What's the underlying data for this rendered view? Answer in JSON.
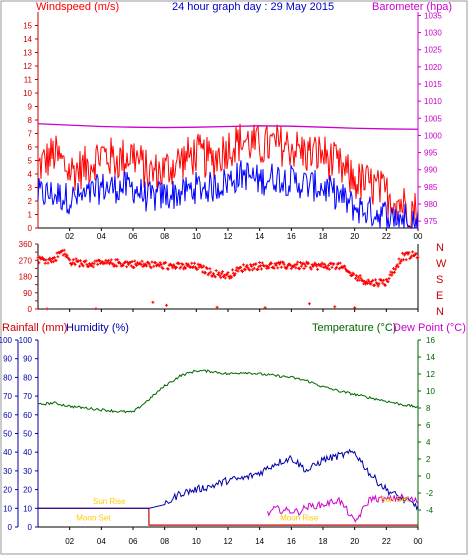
{
  "header": {
    "left_title": "Windspeed (m/s)",
    "center_title": "24 hour graph day : 29 May 2015",
    "right_title": "Barometer (hpa)"
  },
  "colors": {
    "wind": "#ff0000",
    "gust": "#ff0000",
    "avg_wind": "#0000ff",
    "barometer": "#cc00cc",
    "direction": "#ff0000",
    "rain": "#cc0000",
    "humidity": "#0000aa",
    "temperature": "#006600",
    "dewpoint": "#cc00cc",
    "sun_moon": "#ffcc00"
  },
  "chart_data": [
    {
      "type": "line",
      "name": "wind",
      "x_ticks": [
        "02",
        "04",
        "06",
        "08",
        "10",
        "12",
        "14",
        "16",
        "18",
        "20",
        "22",
        "00"
      ],
      "y_left_ticks": [
        0,
        1,
        2,
        3,
        4,
        5,
        6,
        7,
        8,
        9,
        10,
        11,
        12,
        13,
        14,
        15
      ],
      "y_right_ticks": [
        975,
        980,
        985,
        990,
        995,
        1000,
        1005,
        1010,
        1015,
        1020,
        1025,
        1030,
        1035
      ],
      "ylim": [
        0,
        16
      ],
      "ylim_right": [
        973,
        1036
      ],
      "barometer": [
        [
          0,
          1003.4
        ],
        [
          2,
          1003.0
        ],
        [
          4,
          1002.6
        ],
        [
          6,
          1002.4
        ],
        [
          8,
          1002.3
        ],
        [
          10,
          1002.4
        ],
        [
          12,
          1002.6
        ],
        [
          14,
          1002.8
        ],
        [
          16,
          1002.7
        ],
        [
          18,
          1002.4
        ],
        [
          20,
          1002.1
        ],
        [
          22,
          1001.9
        ],
        [
          24,
          1001.8
        ]
      ],
      "gust_profile": [
        [
          0,
          4.5
        ],
        [
          1,
          5.5
        ],
        [
          2,
          4.2
        ],
        [
          3,
          4.5
        ],
        [
          4,
          5.5
        ],
        [
          5,
          5.0
        ],
        [
          6,
          5.5
        ],
        [
          7,
          4.0
        ],
        [
          8,
          4.3
        ],
        [
          9,
          5.0
        ],
        [
          10,
          5.5
        ],
        [
          11,
          5.0
        ],
        [
          12,
          6.0
        ],
        [
          13,
          6.5
        ],
        [
          14,
          6.0
        ],
        [
          15,
          6.2
        ],
        [
          16,
          6.0
        ],
        [
          17,
          5.5
        ],
        [
          18,
          5.5
        ],
        [
          19,
          4.5
        ],
        [
          20,
          3.5
        ],
        [
          21,
          3.2
        ],
        [
          22,
          2.5
        ],
        [
          23,
          1.8
        ],
        [
          24,
          1.2
        ]
      ],
      "avg_profile": [
        [
          0,
          2.5
        ],
        [
          1,
          2.5
        ],
        [
          2,
          2.2
        ],
        [
          3,
          2.3
        ],
        [
          4,
          3.0
        ],
        [
          5,
          3.0
        ],
        [
          6,
          3.0
        ],
        [
          7,
          2.2
        ],
        [
          8,
          2.4
        ],
        [
          9,
          2.6
        ],
        [
          10,
          3.0
        ],
        [
          11,
          3.0
        ],
        [
          12,
          3.5
        ],
        [
          13,
          4.0
        ],
        [
          14,
          3.5
        ],
        [
          15,
          3.8
        ],
        [
          16,
          3.5
        ],
        [
          17,
          3.2
        ],
        [
          18,
          3.0
        ],
        [
          19,
          2.4
        ],
        [
          20,
          1.5
        ],
        [
          21,
          1.2
        ],
        [
          22,
          1.0
        ],
        [
          23,
          0.8
        ],
        [
          24,
          0.5
        ]
      ]
    },
    {
      "type": "scatter",
      "name": "wind_direction",
      "y_ticks": [
        0,
        45,
        90,
        135,
        180,
        225,
        270,
        315,
        360
      ],
      "y_tick_labels": [
        "0",
        "",
        "90",
        "",
        "180",
        "",
        "270",
        "",
        "360"
      ],
      "compass_labels": [
        "N",
        "W",
        "S",
        "E",
        "N"
      ],
      "ylim": [
        0,
        360
      ],
      "profile": [
        [
          0,
          275
        ],
        [
          1,
          270
        ],
        [
          1.5,
          330
        ],
        [
          2,
          265
        ],
        [
          3,
          250
        ],
        [
          4,
          250
        ],
        [
          5,
          255
        ],
        [
          6,
          250
        ],
        [
          7,
          245
        ],
        [
          8,
          240
        ],
        [
          9,
          235
        ],
        [
          10,
          235
        ],
        [
          11,
          200
        ],
        [
          12,
          185
        ],
        [
          13,
          230
        ],
        [
          14,
          240
        ],
        [
          15,
          240
        ],
        [
          16,
          240
        ],
        [
          17,
          240
        ],
        [
          18,
          238
        ],
        [
          19,
          240
        ],
        [
          20,
          180
        ],
        [
          21,
          145
        ],
        [
          22,
          150
        ],
        [
          23,
          290
        ],
        [
          24,
          300
        ]
      ]
    },
    {
      "type": "line",
      "name": "rain_humidity_temperature",
      "left_label_rain": "Rainfall (mm)",
      "left_label_humidity": "Humidity (%)",
      "right_label_temp": "Temperature (°C)",
      "right_label_dew": "Dew Point (°C)",
      "y_left_ticks": [
        0,
        10,
        20,
        30,
        40,
        50,
        60,
        70,
        80,
        90,
        100
      ],
      "y_right_ticks": [
        -4,
        -2,
        0,
        2,
        4,
        6,
        8,
        10,
        12,
        14,
        16
      ],
      "ylim": [
        0,
        100
      ],
      "ylim_right": [
        -6,
        16
      ],
      "temperature": [
        [
          0,
          8.4
        ],
        [
          1,
          8.6
        ],
        [
          2,
          8.2
        ],
        [
          3,
          8.0
        ],
        [
          4,
          7.8
        ],
        [
          5,
          7.6
        ],
        [
          6,
          7.5
        ],
        [
          7,
          9.0
        ],
        [
          8,
          10.6
        ],
        [
          9,
          11.8
        ],
        [
          10,
          12.4
        ],
        [
          11,
          12.3
        ],
        [
          12,
          12.0
        ],
        [
          13,
          12.2
        ],
        [
          14,
          12.0
        ],
        [
          15,
          11.8
        ],
        [
          16,
          11.6
        ],
        [
          17,
          11.2
        ],
        [
          18,
          10.5
        ],
        [
          19,
          10.0
        ],
        [
          20,
          9.6
        ],
        [
          21,
          9.2
        ],
        [
          22,
          8.8
        ],
        [
          23,
          8.4
        ],
        [
          24,
          8.1
        ]
      ],
      "humidity": [
        [
          0,
          10
        ],
        [
          6,
          10
        ],
        [
          7,
          10
        ],
        [
          8,
          12
        ],
        [
          9,
          18
        ],
        [
          10,
          20
        ],
        [
          11,
          22
        ],
        [
          12,
          25
        ],
        [
          13,
          26
        ],
        [
          14,
          29
        ],
        [
          15,
          34
        ],
        [
          16,
          37
        ],
        [
          17,
          30
        ],
        [
          18,
          36
        ],
        [
          19,
          38
        ],
        [
          20,
          40
        ],
        [
          21,
          28
        ],
        [
          22,
          20
        ],
        [
          23,
          15
        ],
        [
          24,
          11
        ]
      ],
      "rainfall": [
        [
          0,
          10
        ],
        [
          7,
          10
        ],
        [
          7.01,
          1
        ],
        [
          24,
          1
        ]
      ],
      "dewpoint": [
        [
          14.5,
          -4.5
        ],
        [
          15,
          -3.8
        ],
        [
          15.3,
          -4.0
        ],
        [
          16.5,
          -4.2
        ],
        [
          17,
          -3.6
        ],
        [
          18,
          -3.4
        ],
        [
          19,
          -2.8
        ],
        [
          19.5,
          -4.0
        ],
        [
          20,
          -5.5
        ],
        [
          21,
          -2.6
        ],
        [
          22,
          -2.8
        ],
        [
          23,
          -2.5
        ],
        [
          24,
          -3.0
        ]
      ],
      "annotations": [
        "Sun Rise",
        "Moon Set",
        "Moon Rise",
        "Sun Set"
      ]
    }
  ]
}
